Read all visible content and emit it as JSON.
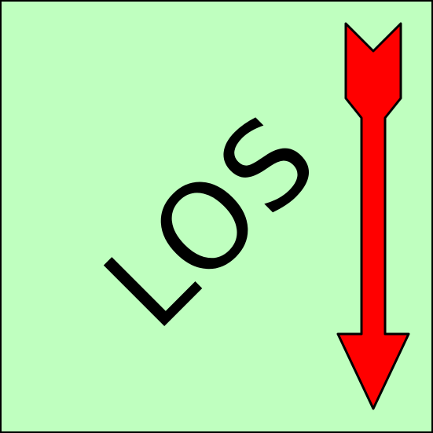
{
  "sign": {
    "label": "LOS"
  }
}
